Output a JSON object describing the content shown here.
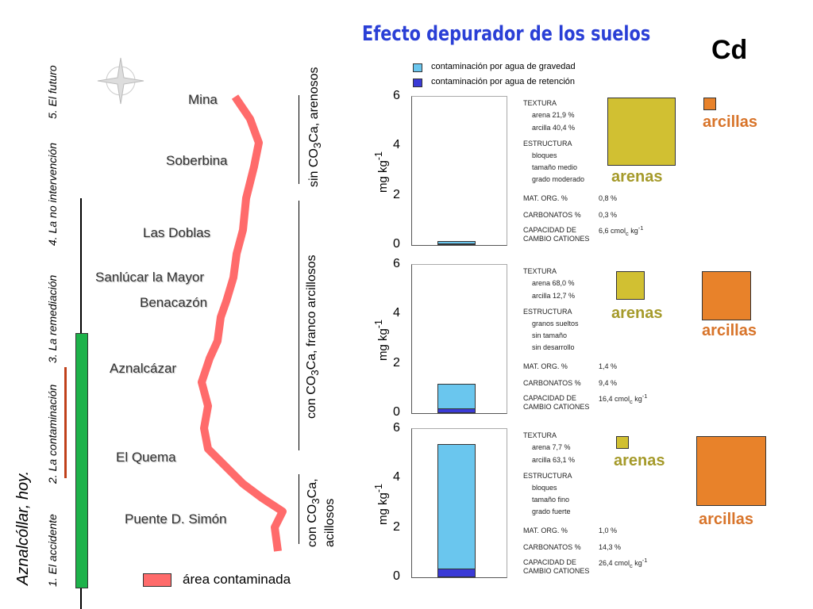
{
  "title": "Efecto depurador de los suelos",
  "element": "Cd",
  "timeline": {
    "main": "Aznalcóllar, hoy.",
    "steps": [
      "1. El accidente",
      "2. La contaminación",
      "3. La remediación",
      "4. La no intervención",
      "5. El futuro"
    ]
  },
  "map": {
    "places": [
      "Mina",
      "Soberbina",
      "Las Doblas",
      "Sanlúcar la Mayor",
      "Benacazón",
      "Aznalcázar",
      "El Quema",
      "Puente D. Simón"
    ],
    "legend": "área contaminada",
    "compass": "N S E W"
  },
  "zones": [
    {
      "a": "sin CO",
      "b": "3",
      "c": "Ca, arenosos"
    },
    {
      "a": "con CO",
      "b": "3",
      "c": "Ca, franco arcillosos"
    },
    {
      "a": "con CO",
      "b": "3",
      "c": "Ca,",
      "d": "acillosos"
    }
  ],
  "legend": {
    "gravity": "contaminación por agua de gravedad",
    "retention": "contaminación por agua de retención"
  },
  "colors": {
    "gravity": "#6ac6ee",
    "retention": "#3a3ad6",
    "arenas": "#d1c032",
    "arcillas": "#e8822a"
  },
  "labels": {
    "arenas": "arenas",
    "arcillas": "arcillas",
    "ylabel": "mg kg",
    "ysup": "-1"
  },
  "soils": [
    {
      "textura": "TEXTURA",
      "arena": "arena  21,9  %",
      "arcilla": "arcilla  40,4  %",
      "estructura": "ESTRUCTURA",
      "e1": "bloques",
      "e2": "tamaño  medio",
      "e3": "grado  moderado",
      "mo": "MAT. ORG. %",
      "mo_v": "0,8 %",
      "carb": "CARBONATOS %",
      "carb_v": "0,3 %",
      "cap1": "CAPACIDAD DE",
      "cap2": "CAMBIO CATIONES",
      "cap_v": "6,6 cmol",
      "cap_s": "c",
      "cap_u": " kg",
      "cap_e": "-1",
      "arena_pct": 21.9,
      "arcilla_pct": 40.4
    },
    {
      "textura": "TEXTURA",
      "arena": "arena  68,0  %",
      "arcilla": "arcilla  12,7  %",
      "estructura": "ESTRUCTURA",
      "e1": "granos sueltos",
      "e2": "sin tamaño",
      "e3": "sin desarrollo",
      "mo": "MAT. ORG. %",
      "mo_v": "1,4 %",
      "carb": "CARBONATOS %",
      "carb_v": "9,4 %",
      "cap1": "CAPACIDAD DE",
      "cap2": "CAMBIO CATIONES",
      "cap_v": "16,4 cmol",
      "cap_s": "c",
      "cap_u": " kg",
      "cap_e": "-1",
      "arena_pct": 68.0,
      "arcilla_pct": 12.7
    },
    {
      "textura": "TEXTURA",
      "arena": "arena  7,7  %",
      "arcilla": "arcilla  63,1  %",
      "estructura": "ESTRUCTURA",
      "e1": "bloques",
      "e2": "tamaño  fino",
      "e3": "grado  fuerte",
      "mo": "MAT. ORG. %",
      "mo_v": "1,0  %",
      "carb": "CARBONATOS %",
      "carb_v": "14,3 %",
      "cap1": "CAPACIDAD DE",
      "cap2": "CAMBIO CATIONES",
      "cap_v": "26,4  cmol",
      "cap_s": "c",
      "cap_u": " kg",
      "cap_e": "-1",
      "arena_pct": 7.7,
      "arcilla_pct": 63.1
    }
  ],
  "chart_data": [
    {
      "type": "bar",
      "stacked": true,
      "ylabel": "mg kg-1",
      "ylim": [
        0,
        6
      ],
      "yticks": [
        "0",
        "2",
        "4",
        "6"
      ],
      "series": [
        {
          "name": "contaminación por agua de retención",
          "values": [
            0.05
          ]
        },
        {
          "name": "contaminación por agua de gravedad",
          "values": [
            0.1
          ]
        }
      ]
    },
    {
      "type": "bar",
      "stacked": true,
      "ylabel": "mg kg-1",
      "ylim": [
        0,
        6
      ],
      "yticks": [
        "0",
        "2",
        "4",
        "6"
      ],
      "series": [
        {
          "name": "contaminación por agua de retención",
          "values": [
            0.2
          ]
        },
        {
          "name": "contaminación por agua de gravedad",
          "values": [
            1.0
          ]
        }
      ]
    },
    {
      "type": "bar",
      "stacked": true,
      "ylabel": "mg kg-1",
      "ylim": [
        0,
        6
      ],
      "yticks": [
        "0",
        "2",
        "4",
        "6"
      ],
      "series": [
        {
          "name": "contaminación por agua de retención",
          "values": [
            0.35
          ]
        },
        {
          "name": "contaminación por agua de gravedad",
          "values": [
            5.05
          ]
        }
      ]
    }
  ]
}
